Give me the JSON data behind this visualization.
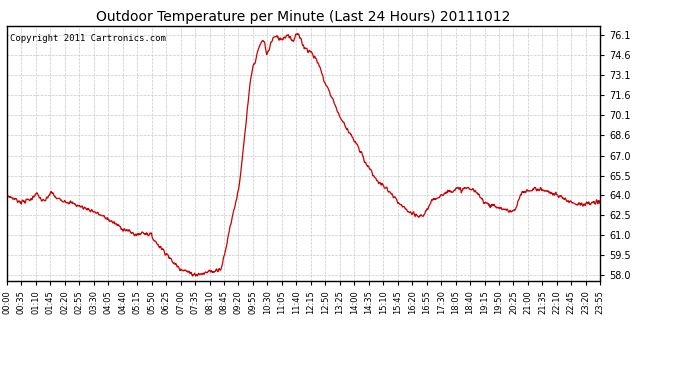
{
  "title": "Outdoor Temperature per Minute (Last 24 Hours) 20111012",
  "copyright_text": "Copyright 2011 Cartronics.com",
  "line_color": "#cc0000",
  "background_color": "#ffffff",
  "grid_color": "#c8c8c8",
  "yticks": [
    58.0,
    59.5,
    61.0,
    62.5,
    64.0,
    65.5,
    67.0,
    68.6,
    70.1,
    71.6,
    73.1,
    74.6,
    76.1
  ],
  "ylim": [
    57.5,
    76.8
  ],
  "xtick_labels": [
    "00:00",
    "00:35",
    "01:10",
    "01:45",
    "02:20",
    "02:55",
    "03:30",
    "04:05",
    "04:40",
    "05:15",
    "05:50",
    "06:25",
    "07:00",
    "07:35",
    "08:10",
    "08:45",
    "09:20",
    "09:55",
    "10:30",
    "11:05",
    "11:40",
    "12:15",
    "12:50",
    "13:25",
    "14:00",
    "14:35",
    "15:10",
    "15:45",
    "16:20",
    "16:55",
    "17:30",
    "18:05",
    "18:40",
    "19:15",
    "19:50",
    "20:25",
    "21:00",
    "21:35",
    "22:10",
    "22:45",
    "23:20",
    "23:55"
  ],
  "n_xticks": 42,
  "keypoints": [
    [
      0,
      64.0
    ],
    [
      35,
      63.5
    ],
    [
      70,
      63.8
    ],
    [
      105,
      63.9
    ],
    [
      140,
      63.6
    ],
    [
      175,
      63.2
    ],
    [
      210,
      62.8
    ],
    [
      245,
      62.2
    ],
    [
      280,
      61.5
    ],
    [
      315,
      61.0
    ],
    [
      330,
      61.2
    ],
    [
      350,
      61.0
    ],
    [
      360,
      60.5
    ],
    [
      375,
      60.0
    ],
    [
      390,
      59.5
    ],
    [
      400,
      59.0
    ],
    [
      420,
      58.5
    ],
    [
      445,
      58.1
    ],
    [
      460,
      58.0
    ],
    [
      480,
      58.1
    ],
    [
      490,
      58.3
    ],
    [
      500,
      58.2
    ],
    [
      510,
      58.4
    ],
    [
      520,
      58.5
    ],
    [
      530,
      59.8
    ],
    [
      540,
      61.5
    ],
    [
      555,
      63.5
    ],
    [
      565,
      65.0
    ],
    [
      570,
      66.5
    ],
    [
      575,
      68.0
    ],
    [
      580,
      69.5
    ],
    [
      585,
      71.0
    ],
    [
      590,
      72.5
    ],
    [
      595,
      73.5
    ],
    [
      600,
      74.0
    ],
    [
      605,
      74.5
    ],
    [
      610,
      75.0
    ],
    [
      615,
      75.3
    ],
    [
      620,
      75.5
    ],
    [
      625,
      75.6
    ],
    [
      630,
      74.8
    ],
    [
      635,
      75.2
    ],
    [
      640,
      75.5
    ],
    [
      645,
      75.7
    ],
    [
      650,
      75.8
    ],
    [
      655,
      76.0
    ],
    [
      660,
      76.1
    ],
    [
      665,
      76.0
    ],
    [
      670,
      75.9
    ],
    [
      675,
      75.8
    ],
    [
      680,
      76.0
    ],
    [
      685,
      76.1
    ],
    [
      690,
      76.0
    ],
    [
      695,
      75.9
    ],
    [
      700,
      76.1
    ],
    [
      705,
      76.0
    ],
    [
      710,
      75.8
    ],
    [
      715,
      75.6
    ],
    [
      720,
      75.5
    ],
    [
      725,
      75.3
    ],
    [
      730,
      75.0
    ],
    [
      740,
      74.8
    ],
    [
      745,
      74.5
    ],
    [
      750,
      74.3
    ],
    [
      755,
      74.0
    ],
    [
      760,
      73.6
    ],
    [
      765,
      73.1
    ],
    [
      770,
      72.6
    ],
    [
      780,
      72.0
    ],
    [
      790,
      71.3
    ],
    [
      800,
      70.5
    ],
    [
      810,
      69.8
    ],
    [
      820,
      69.3
    ],
    [
      830,
      68.8
    ],
    [
      835,
      68.6
    ],
    [
      840,
      68.2
    ],
    [
      845,
      67.8
    ],
    [
      850,
      67.5
    ],
    [
      855,
      67.1
    ],
    [
      860,
      66.9
    ],
    [
      870,
      66.5
    ],
    [
      880,
      66.0
    ],
    [
      890,
      65.5
    ],
    [
      900,
      65.0
    ],
    [
      910,
      64.8
    ],
    [
      920,
      64.5
    ],
    [
      930,
      64.2
    ],
    [
      940,
      63.8
    ],
    [
      950,
      63.4
    ],
    [
      960,
      63.1
    ],
    [
      970,
      62.9
    ],
    [
      980,
      62.6
    ],
    [
      990,
      62.5
    ],
    [
      1000,
      62.4
    ],
    [
      1010,
      62.5
    ],
    [
      1020,
      63.0
    ],
    [
      1030,
      63.5
    ],
    [
      1040,
      63.8
    ],
    [
      1050,
      64.0
    ],
    [
      1060,
      64.1
    ],
    [
      1070,
      64.3
    ],
    [
      1080,
      64.4
    ],
    [
      1090,
      64.5
    ],
    [
      1100,
      64.4
    ],
    [
      1110,
      64.3
    ],
    [
      1120,
      64.2
    ],
    [
      1130,
      64.0
    ],
    [
      1140,
      63.8
    ],
    [
      1150,
      63.6
    ],
    [
      1160,
      63.5
    ],
    [
      1170,
      63.3
    ],
    [
      1180,
      63.2
    ],
    [
      1190,
      63.1
    ],
    [
      1200,
      63.0
    ],
    [
      1210,
      62.9
    ],
    [
      1220,
      62.8
    ],
    [
      1230,
      62.8
    ],
    [
      1235,
      63.0
    ],
    [
      1240,
      63.5
    ],
    [
      1245,
      64.0
    ],
    [
      1250,
      64.2
    ],
    [
      1260,
      64.3
    ],
    [
      1270,
      64.4
    ],
    [
      1280,
      64.5
    ],
    [
      1290,
      64.5
    ],
    [
      1300,
      64.4
    ],
    [
      1310,
      64.3
    ],
    [
      1320,
      64.2
    ],
    [
      1330,
      64.1
    ],
    [
      1340,
      63.9
    ],
    [
      1350,
      63.8
    ],
    [
      1360,
      63.6
    ],
    [
      1380,
      63.4
    ],
    [
      1400,
      63.3
    ],
    [
      1420,
      63.4
    ],
    [
      1439,
      63.5
    ]
  ]
}
